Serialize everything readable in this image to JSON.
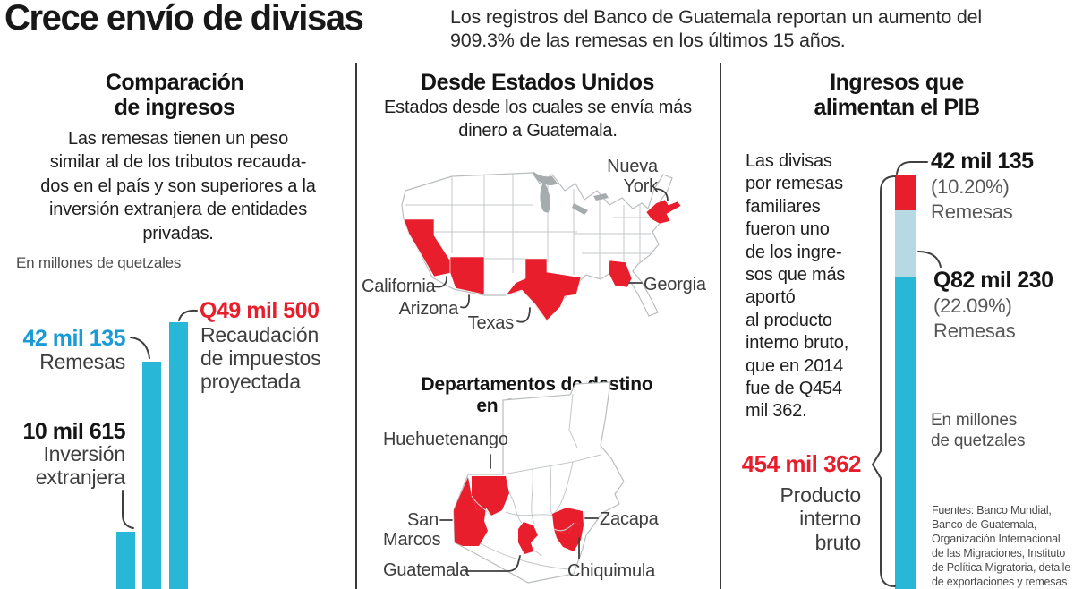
{
  "header": {
    "title": "Crece envío de divisas",
    "subtitle": "Los registros del Banco de Guatemala reportan un aumento del\n909.3% de las remesas en los últimos 15 años."
  },
  "left_panel": {
    "title": "Comparación\nde ingresos",
    "body": "Las remesas tienen un peso\nsimilar al de los tributos recauda-\ndos en el país y son superiores a la\ninversión extranjera de entidades\nprivadas.",
    "unit": "En millones de quetzales",
    "bars": {
      "remesas": {
        "value": "42 mil 135",
        "label": "Remesas"
      },
      "inversion": {
        "value": "10 mil 615",
        "label": "Inversión\nextranjera"
      },
      "recaudacion": {
        "value": "Q49 mil 500",
        "label": "Recaudación\nde impuestos\nproyectada"
      }
    }
  },
  "middle_panel": {
    "title": "Desde Estados Unidos",
    "subtitle": "Estados desde los cuales se envía más\ndinero a Guatemala.",
    "us_map_labels": {
      "new_york": "Nueva\nYork",
      "california": "California",
      "arizona": "Arizona",
      "texas": "Texas",
      "georgia": "Georgia"
    },
    "guatemala_title": "Departamentos de destino\nen Guatemala",
    "guatemala_labels": {
      "huehuetenango": "Huehuetenango",
      "san_marcos": "San\nMarcos",
      "guatemala": "Guatemala",
      "zacapa": "Zacapa",
      "chiquimula": "Chiquimula"
    }
  },
  "right_panel": {
    "title": "Ingresos que\nalimentan el PIB",
    "body": "Las divisas\npor remesas\nfamiliares\nfueron uno\nde los ingre-\nsos que más\naportó\nal producto\ninterno bruto,\nque en 2014\nfue de Q454\nmil 362.",
    "segment_remesas_top": {
      "value": "42 mil 135",
      "pct": "(10.20%)",
      "label": "Remesas"
    },
    "segment_remesas_mid": {
      "value": "Q82 mil 230",
      "pct": "(22.09%)",
      "label": "Remesas"
    },
    "unit": "En millones\nde quetzales",
    "total": {
      "value": "454 mil 362",
      "label": "Producto\ninterno\nbruto"
    },
    "sources": "Fuentes: Banco Mundial,\nBanco de Guatemala,\nOrganización Internacional\nde las Migraciones, Instituto\nde Política Migratoria, detalle\nde exportaciones y remesas"
  },
  "colors": {
    "cyan": "#29b7d8",
    "blue_text": "#1a9ad6",
    "red": "#e81e2c",
    "light_blue": "#b7d9e3"
  },
  "chart_data": [
    {
      "type": "bar",
      "title": "Comparación de ingresos",
      "ylabel": "En millones de quetzales",
      "categories": [
        "Inversión extranjera",
        "Remesas",
        "Recaudación de impuestos proyectada"
      ],
      "values": [
        10615,
        42135,
        49500
      ],
      "value_labels": [
        "10 mil 615",
        "42 mil 135",
        "Q49 mil 500"
      ]
    },
    {
      "type": "bar",
      "subtype": "stacked",
      "title": "Ingresos que alimentan el PIB",
      "units": "En millones de quetzales",
      "segments": [
        {
          "name": "Remesas",
          "value": 42135,
          "pct": "10.20%",
          "color": "#e81e2c"
        },
        {
          "name": "Remesas",
          "value": 82230,
          "pct": "22.09%",
          "color": "#b7d9e3"
        },
        {
          "name": "Producto interno bruto (resto)",
          "color": "#29b7d8"
        }
      ],
      "total": {
        "name": "Producto interno bruto",
        "value": 454362,
        "year": "2014"
      }
    },
    {
      "type": "map",
      "region": "Estados Unidos",
      "highlighted": [
        "California",
        "Arizona",
        "Texas",
        "Georgia",
        "Nueva York"
      ]
    },
    {
      "type": "map",
      "region": "Guatemala",
      "highlighted": [
        "Huehuetenango",
        "San Marcos",
        "Guatemala",
        "Zacapa",
        "Chiquimula"
      ]
    }
  ]
}
